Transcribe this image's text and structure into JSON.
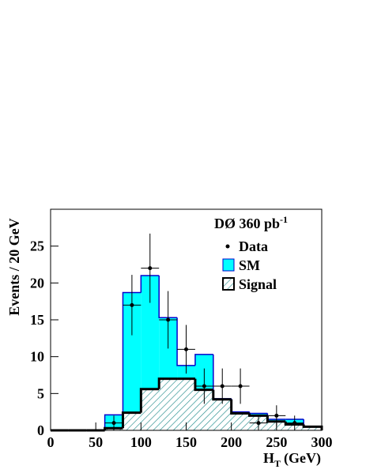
{
  "chart_data": {
    "type": "histogram",
    "title": "DØ 360 pb",
    "title_superscript": "-1",
    "x_label": "H",
    "x_label_subscript": "T",
    "x_label_unit": "(GeV)",
    "y_label": "Events / 20 GeV",
    "bins": [
      0,
      20,
      40,
      60,
      80,
      100,
      120,
      140,
      160,
      180,
      200,
      220,
      240,
      260,
      280,
      300
    ],
    "series": [
      {
        "name": "SM",
        "color": "#00ffff",
        "line_color": "#0000cc",
        "values": [
          0,
          0,
          0,
          2.1,
          18.7,
          21,
          15.3,
          8.8,
          10.3,
          4.3,
          2.5,
          2.3,
          1.5,
          1.5,
          0.5
        ]
      },
      {
        "name": "Signal",
        "color": "#2a8f8f",
        "line_color": "#000000",
        "hatch": true,
        "values": [
          0,
          0,
          0,
          0.3,
          2.4,
          5.6,
          7.0,
          7.0,
          5.5,
          4.2,
          2.3,
          2.0,
          1.2,
          0.8,
          0.5
        ]
      }
    ],
    "data": {
      "name": "Data",
      "color": "#000000",
      "x": [
        70,
        90,
        110,
        130,
        150,
        170,
        190,
        210,
        230,
        250,
        270
      ],
      "values": [
        1,
        17,
        22,
        15,
        11,
        6,
        6,
        6,
        1,
        2,
        1
      ],
      "errors": [
        1,
        4.1,
        4.7,
        3.9,
        3.3,
        2.4,
        2.4,
        2.4,
        1,
        1.4,
        1
      ]
    },
    "xlim": [
      0,
      300
    ],
    "xticks": [
      0,
      50,
      100,
      150,
      200,
      250,
      300
    ],
    "ylim": [
      0,
      30
    ],
    "yticks": [
      0,
      5,
      10,
      15,
      20,
      25
    ],
    "legend": "top-right"
  }
}
